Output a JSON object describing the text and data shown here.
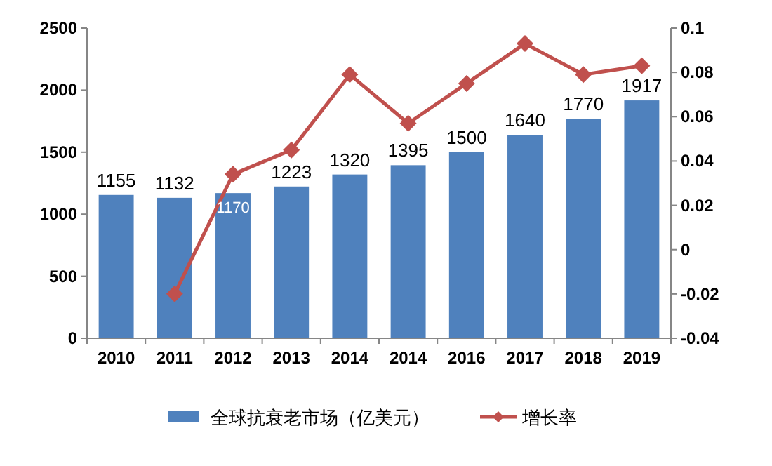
{
  "chart_data": {
    "type": "bar",
    "categories": [
      "2010",
      "2011",
      "2012",
      "2013",
      "2014",
      "2014",
      "2016",
      "2017",
      "2018",
      "2019"
    ],
    "series": [
      {
        "name": "全球抗衰老市场（亿美元）",
        "color": "#4f81bd",
        "values": [
          1155,
          1132,
          1170,
          1223,
          1320,
          1395,
          1500,
          1640,
          1770,
          1917
        ],
        "data_labels": true
      },
      {
        "name": "增长率",
        "type": "line",
        "axis": "y2",
        "color": "#c0504d",
        "marker": "diamond",
        "values": [
          null,
          -0.02,
          0.034,
          0.045,
          0.079,
          0.057,
          0.075,
          0.093,
          0.079,
          0.083
        ]
      }
    ],
    "ylim": [
      0,
      2500
    ],
    "yticks": [
      0,
      500,
      1000,
      1500,
      2000,
      2500
    ],
    "y2lim": [
      -0.04,
      0.1
    ],
    "y2ticks": [
      {
        "value": -0.04,
        "label": "-0.04"
      },
      {
        "value": -0.02,
        "label": "-0.02"
      },
      0,
      0.02,
      0.04,
      0.06,
      0.08,
      0.1
    ],
    "grid": false,
    "legend": "bottom"
  }
}
